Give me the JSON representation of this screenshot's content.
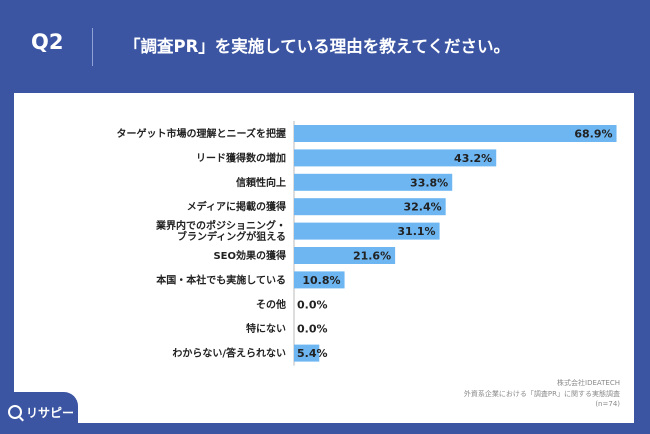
{
  "header": {
    "question_number": "Q2",
    "question_text": "「調査PR」を実施している理由を教えてください。"
  },
  "colors": {
    "background": "#3b55a3",
    "bar": "#6db6f2",
    "text": "#222222"
  },
  "chart_data": {
    "type": "bar",
    "orientation": "horizontal",
    "categories": [
      "ターゲット市場の理解とニーズを把握",
      "リード獲得数の増加",
      "信頼性向上",
      "メディアに掲載の獲得",
      "業界内でのポジショニング・\nブランディングが狙える",
      "SEO効果の獲得",
      "本国・本社でも実施している",
      "その他",
      "特にない",
      "わからない/答えられない"
    ],
    "values": [
      68.9,
      43.2,
      33.8,
      32.4,
      31.1,
      21.6,
      10.8,
      0.0,
      0.0,
      5.4
    ],
    "value_labels": [
      "68.9%",
      "43.2%",
      "33.8%",
      "32.4%",
      "31.1%",
      "21.6%",
      "10.8%",
      "0.0%",
      "0.0%",
      "5.4%"
    ],
    "xlim": [
      0,
      69
    ],
    "grid": false
  },
  "source": {
    "company": "株式会社IDEATECH",
    "survey": "外資系企業における「調査PR」に関する実態調査",
    "sample": "(n=74)"
  },
  "brand": {
    "logo_text": "リサピー",
    "logo_icon": "magnifier-icon"
  }
}
